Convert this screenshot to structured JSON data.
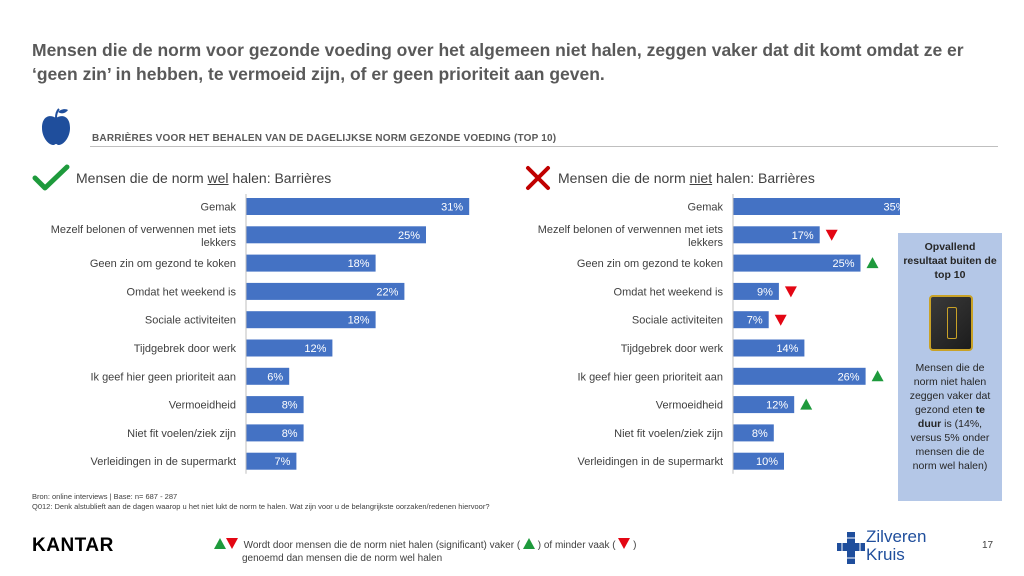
{
  "title": "Mensen die de norm voor gezonde voeding over het algemeen niet halen, zeggen vaker dat dit komt omdat ze er ‘geen zin’ in hebben, te vermoeid zijn, of er geen prioriteit aan geven.",
  "section_title": "BARRIÈRES VOOR HET BEHALEN VAN DE DAGELIJKSE NORM GEZONDE VOEDING (TOP 10)",
  "icons": {
    "section": "apple-icon",
    "left_panel": "checkmark-icon",
    "right_panel": "cross-icon",
    "callout": "gold-frame-icon"
  },
  "colors": {
    "bar": "#4472c4",
    "up": "#1e9a3c",
    "down": "#e30613",
    "check": "#1e9a3c",
    "cross": "#c00000",
    "callout_bg": "#b4c7e7",
    "brand_blue": "#1f4e9c"
  },
  "left_panel": {
    "title_pre": "Mensen die de norm ",
    "title_em": "wel",
    "title_post": " halen: Barrières"
  },
  "right_panel": {
    "title_pre": "Mensen die de norm ",
    "title_em": "niet",
    "title_post": " halen: Barrières"
  },
  "chart_data": [
    {
      "type": "bar",
      "orientation": "horizontal",
      "title": "Mensen die de norm wel halen: Barrières",
      "categories": [
        "Gemak",
        "Mezelf belonen of verwennen met iets lekkers",
        "Geen zin om gezond te koken",
        "Omdat het weekend is",
        "Sociale activiteiten",
        "Tijdgebrek door werk",
        "Ik geef hier geen prioriteit aan",
        "Vermoeidheid",
        "Niet fit voelen/ziek zijn",
        "Verleidingen in de supermarkt"
      ],
      "category_lines": [
        [
          "Gemak"
        ],
        [
          "Mezelf belonen of verwennen met iets",
          "lekkers"
        ],
        [
          "Geen zin om gezond te koken"
        ],
        [
          "Omdat het weekend is"
        ],
        [
          "Sociale activiteiten"
        ],
        [
          "Tijdgebrek door werk"
        ],
        [
          "Ik geef hier geen prioriteit aan"
        ],
        [
          "Vermoeidheid"
        ],
        [
          "Niet fit voelen/ziek zijn"
        ],
        [
          "Verleidingen in de supermarkt"
        ]
      ],
      "values": [
        31,
        25,
        18,
        22,
        18,
        12,
        6,
        8,
        8,
        7
      ],
      "value_labels": [
        "31%",
        "25%",
        "18%",
        "22%",
        "18%",
        "12%",
        "6%",
        "8%",
        "8%",
        "7%"
      ],
      "unit": "%",
      "xlim": [
        0,
        40
      ]
    },
    {
      "type": "bar",
      "orientation": "horizontal",
      "title": "Mensen die de norm niet halen: Barrières",
      "categories": [
        "Gemak",
        "Mezelf belonen of verwennen met iets lekkers",
        "Geen zin om gezond te koken",
        "Omdat het weekend is",
        "Sociale activiteiten",
        "Tijdgebrek door werk",
        "Ik geef hier geen prioriteit aan",
        "Vermoeidheid",
        "Niet fit voelen/ziek zijn",
        "Verleidingen in de supermarkt"
      ],
      "category_lines": [
        [
          "Gemak"
        ],
        [
          "Mezelf belonen of verwennen met iets",
          "lekkers"
        ],
        [
          "Geen zin om gezond te koken"
        ],
        [
          "Omdat het weekend is"
        ],
        [
          "Sociale activiteiten"
        ],
        [
          "Tijdgebrek door werk"
        ],
        [
          "Ik geef hier geen prioriteit aan"
        ],
        [
          "Vermoeidheid"
        ],
        [
          "Niet fit voelen/ziek zijn"
        ],
        [
          "Verleidingen in de supermarkt"
        ]
      ],
      "values": [
        35,
        17,
        25,
        9,
        7,
        14,
        26,
        12,
        8,
        10
      ],
      "value_labels": [
        "35%",
        "17%",
        "25%",
        "9%",
        "7%",
        "14%",
        "26%",
        "12%",
        "8%",
        "10%"
      ],
      "significance": [
        null,
        "down",
        "up",
        "down",
        "down",
        null,
        "up",
        "up",
        null,
        null
      ],
      "unit": "%",
      "xlim": [
        0,
        40
      ]
    }
  ],
  "callout": {
    "heading": "Opvallend resultaat buiten de top 10",
    "body_pre": "Mensen die de norm niet halen zeggen vaker dat gezond eten",
    "body_bold": "te duur",
    "body_post": "is (14%, versus 5% onder mensen die de norm wel halen)"
  },
  "source_line1": "Bron: online interviews | Base: n= 687 - 287",
  "source_line2": "Q012: Denk alstublieft aan de dagen waarop u het niet lukt de norm te halen. Wat zijn voor u de belangrijkste oorzaken/redenen hiervoor?",
  "legend": {
    "text1": "Wordt door mensen die de norm niet halen (significant) vaker (",
    "text2": ") of minder vaak (",
    "text3": ")",
    "text4": "genoemd dan mensen die de norm wel halen"
  },
  "brand_left": "KANTAR",
  "brand_right_line1": "Zilveren",
  "brand_right_line2": "Kruis",
  "brand_right_icon": "cross-pattern-icon",
  "page_number": "17"
}
